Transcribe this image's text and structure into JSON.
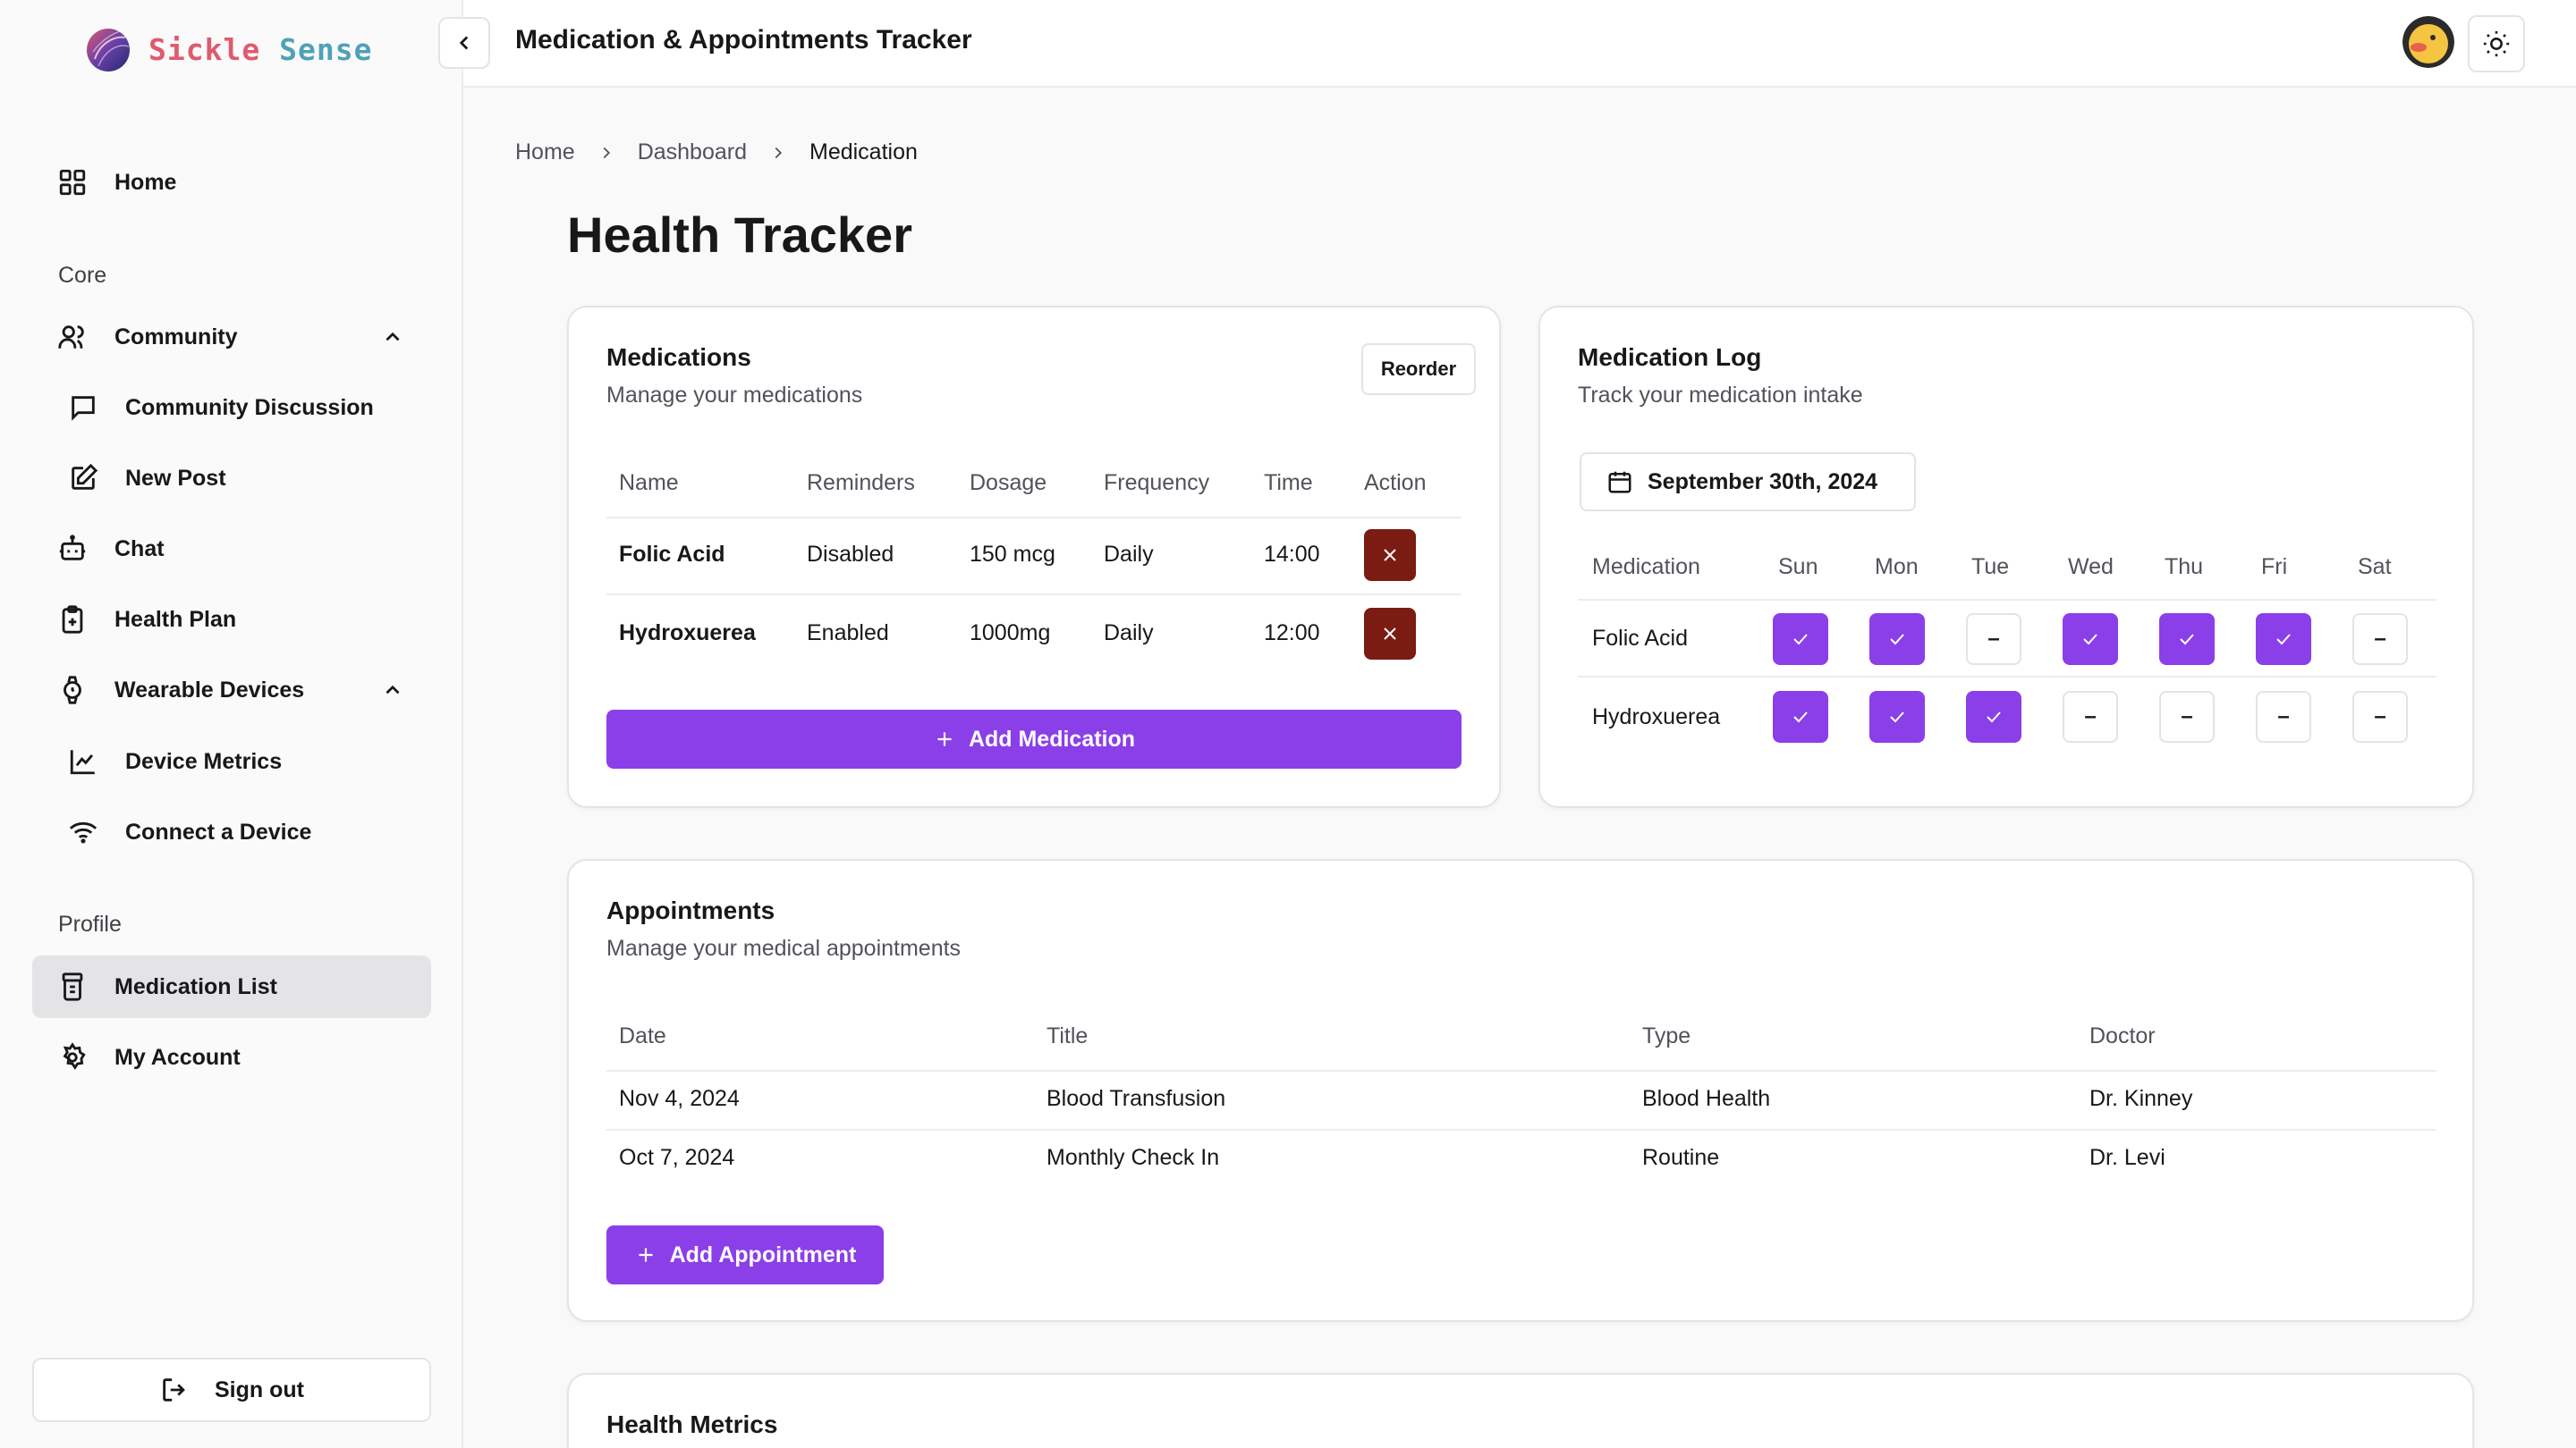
{
  "brand": {
    "word1": "Sickle",
    "word2": "Sense"
  },
  "sidebar": {
    "home": "Home",
    "core_label": "Core",
    "community": "Community",
    "community_discussion": "Community Discussion",
    "new_post": "New Post",
    "chat": "Chat",
    "health_plan": "Health Plan",
    "wearable_devices": "Wearable Devices",
    "device_metrics": "Device Metrics",
    "connect_device": "Connect a Device",
    "profile_label": "Profile",
    "medication_list": "Medication List",
    "my_account": "My Account",
    "sign_out": "Sign out"
  },
  "header": {
    "title": "Medication & Appointments Tracker"
  },
  "breadcrumb": [
    "Home",
    "Dashboard",
    "Medication"
  ],
  "page_title": "Health Tracker",
  "medications": {
    "title": "Medications",
    "subtitle": "Manage your medications",
    "reorder_label": "Reorder",
    "columns": [
      "Name",
      "Reminders",
      "Dosage",
      "Frequency",
      "Time",
      "Action"
    ],
    "rows": [
      {
        "name": "Folic Acid",
        "reminders": "Disabled",
        "dosage": "150 mcg",
        "frequency": "Daily",
        "time": "14:00"
      },
      {
        "name": "Hydroxuerea",
        "reminders": "Enabled",
        "dosage": "1000mg",
        "frequency": "Daily",
        "time": "12:00"
      }
    ],
    "add_label": "Add Medication"
  },
  "med_log": {
    "title": "Medication Log",
    "subtitle": "Track your medication intake",
    "date": "September 30th, 2024",
    "columns": [
      "Medication",
      "Sun",
      "Mon",
      "Tue",
      "Wed",
      "Thu",
      "Fri",
      "Sat"
    ],
    "rows": [
      {
        "name": "Folic Acid",
        "taken": [
          true,
          true,
          false,
          true,
          true,
          true,
          false
        ]
      },
      {
        "name": "Hydroxuerea",
        "taken": [
          true,
          true,
          true,
          false,
          false,
          false,
          false
        ]
      }
    ],
    "untaken_glyph": "–"
  },
  "appointments": {
    "title": "Appointments",
    "subtitle": "Manage your medical appointments",
    "columns": [
      "Date",
      "Title",
      "Type",
      "Doctor"
    ],
    "rows": [
      {
        "date": "Nov 4, 2024",
        "title": "Blood Transfusion",
        "type": "Blood Health",
        "doctor": "Dr. Kinney"
      },
      {
        "date": "Oct 7, 2024",
        "title": "Monthly Check In",
        "type": "Routine",
        "doctor": "Dr. Levi"
      }
    ],
    "add_label": "Add Appointment"
  },
  "health_metrics": {
    "title": "Health Metrics"
  },
  "colors": {
    "accent": "#8b3fe8",
    "danger": "#7a1c12"
  },
  "icons": {
    "home": "grid-icon",
    "community": "users-icon",
    "discussion": "message-square-icon",
    "new_post": "edit-icon",
    "chat": "bot-icon",
    "health_plan": "clipboard-icon",
    "wearable": "watch-icon",
    "metrics": "line-chart-icon",
    "connect": "wifi-icon",
    "medication_list": "pill-bottle-icon",
    "account": "gear-icon",
    "sign_out": "log-out-icon",
    "theme": "sun-icon",
    "calendar": "calendar-icon"
  }
}
